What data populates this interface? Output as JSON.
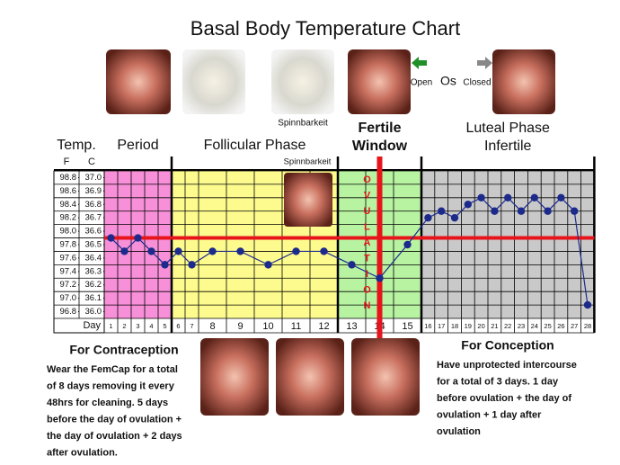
{
  "chart_data": {
    "type": "line",
    "title": "Basal Body Temperature Chart",
    "y_label": "Temp.",
    "y_unit": "F",
    "y2_unit": "C",
    "x_label": "Day",
    "categories": [
      "1",
      "2",
      "3",
      "4",
      "5",
      "6",
      "7",
      "8",
      "9",
      "10",
      "11",
      "12",
      "13",
      "14",
      "15",
      "16",
      "17",
      "18",
      "19",
      "20",
      "21",
      "22",
      "23",
      "24",
      "25",
      "26",
      "27",
      "28"
    ],
    "series": [
      {
        "color": "#1c2a8c",
        "values": [
          97.9,
          97.7,
          97.9,
          97.7,
          97.5,
          97.7,
          97.5,
          97.7,
          97.7,
          97.5,
          97.7,
          97.7,
          97.5,
          97.3,
          97.8,
          98.2,
          98.3,
          98.2,
          98.4,
          98.5,
          98.3,
          98.5,
          98.3,
          98.5,
          98.3,
          98.5,
          98.3,
          96.9
        ]
      }
    ],
    "ylim": [
      96.7,
      98.9
    ],
    "yticks": [
      98.8,
      98.6,
      98.4,
      98.2,
      {
        "value": 98,
        "label": "98.0"
      },
      97.8,
      97.6,
      97.4,
      97.2,
      {
        "value": 97,
        "label": "97.0"
      },
      96.8
    ],
    "y2lim": [
      35.95,
      37.05
    ],
    "y2ticks": [
      {
        "value": 37,
        "label": "37.0"
      },
      36.9,
      36.8,
      36.7,
      36.6,
      36.5,
      36.4,
      36.3,
      36.2,
      36.1,
      {
        "value": 36,
        "label": "36.0"
      }
    ],
    "coverline": {
      "value": 97.9,
      "color": "#e8141c"
    },
    "phases": [
      {
        "label": [
          "Period"
        ],
        "start": 1,
        "end": 5,
        "color": "#f790d8"
      },
      {
        "label": [
          "Follicular Phase"
        ],
        "start": 6,
        "end": 12,
        "color": "#fdfb8e"
      },
      {
        "label": [
          "Fertile",
          "Window"
        ],
        "start": 13,
        "end": 15,
        "color": "#b8f3a2"
      },
      {
        "label": [
          "Luteal Phase",
          "Infertile"
        ],
        "start": 16,
        "end": 28,
        "color": "#c9c9c9"
      }
    ],
    "ovulation": {
      "day": 14,
      "label": "OVULATION",
      "color": "#e8141c"
    }
  },
  "captions": {
    "spinnbarkeit_top": "Spinnbarkeit",
    "spinnbarkeit_chart": "Spinnbarkeit",
    "open": "Open",
    "os": "Os",
    "closed": "Closed"
  },
  "contraception": {
    "heading": "For Contraception",
    "lines": [
      "Wear the FemCap for a total",
      "of 8 days removing it every",
      "48hrs for cleaning. 5 days",
      "before the day of ovulation +",
      "the day of ovulation + 2 days",
      "after ovulation."
    ]
  },
  "conception": {
    "heading": "For Conception",
    "lines": [
      "Have unprotected intercourse",
      "for a total of 3 days. 1 day",
      "before ovulation + the day of",
      "ovulation + 1 day after",
      "ovulation"
    ]
  }
}
